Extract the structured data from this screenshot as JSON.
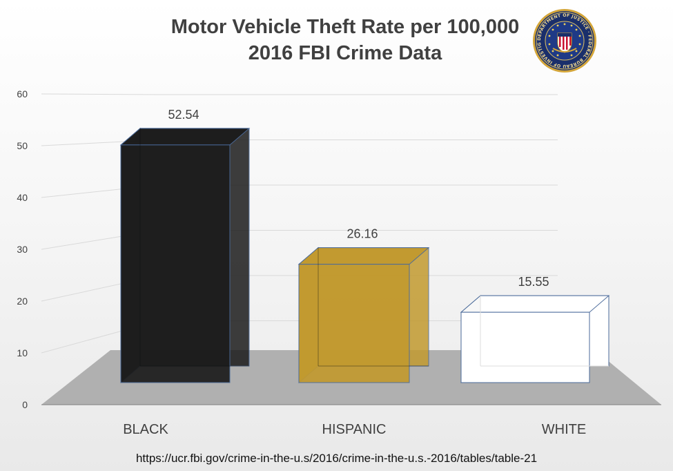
{
  "chart_data": {
    "type": "bar",
    "title": "Motor Vehicle Theft Rate per 100,000",
    "subtitle": "2016 FBI Crime Data",
    "categories": [
      "BLACK",
      "HISPANIC",
      "WHITE"
    ],
    "values": [
      52.54,
      26.16,
      15.55
    ],
    "data_labels": [
      "52.54",
      "26.16",
      "15.55"
    ],
    "yticks": [
      "0",
      "10",
      "20",
      "30",
      "40",
      "50",
      "60"
    ],
    "ylim": [
      0,
      60
    ],
    "xlabel": "",
    "ylabel": "",
    "grid": true,
    "bar_colors": [
      "#1c1c1c",
      "#c29a2f",
      "#ffffff"
    ],
    "style": "3d"
  },
  "logo": {
    "name": "fbi-seal-icon",
    "text": "DEPARTMENT OF JUSTICE · FEDERAL BUREAU OF INVESTIGATION"
  },
  "source": "https://ucr.fbi.gov/crime-in-the-u.s/2016/crime-in-the-u.s.-2016/tables/table-21"
}
